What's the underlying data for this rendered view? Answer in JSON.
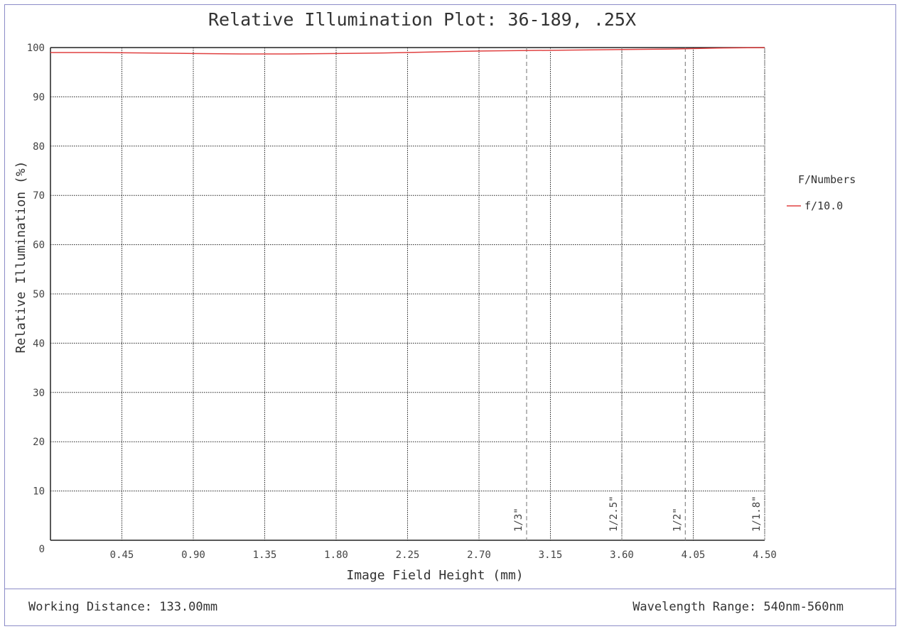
{
  "footer": {
    "working_distance": "Working Distance: 133.00mm",
    "wavelength_range": "Wavelength Range: 540nm-560nm"
  },
  "chart_data": {
    "type": "line",
    "title": "Relative Illumination Plot: 36-189, .25X",
    "xlabel": "Image Field Height (mm)",
    "ylabel": "Relative Illumination (%)",
    "xlim": [
      0,
      4.5
    ],
    "ylim": [
      0,
      100
    ],
    "x_ticks": [
      "0.45",
      "0.90",
      "1.35",
      "1.80",
      "2.25",
      "2.70",
      "3.15",
      "3.60",
      "4.05",
      "4.50"
    ],
    "y_ticks": [
      "0",
      "10",
      "20",
      "30",
      "40",
      "50",
      "60",
      "70",
      "80",
      "90",
      "100"
    ],
    "grid": true,
    "legend": {
      "title": "F/Numbers",
      "placement": "right"
    },
    "series": [
      {
        "name": "f/10.0",
        "color": "#e04040",
        "x": [
          0,
          0.3,
          0.6,
          0.9,
          1.2,
          1.5,
          1.8,
          2.1,
          2.4,
          2.7,
          3.0,
          3.3,
          3.6,
          3.9,
          4.2,
          4.5
        ],
        "y": [
          99.0,
          99.0,
          98.9,
          98.8,
          98.7,
          98.7,
          98.8,
          98.9,
          99.1,
          99.3,
          99.4,
          99.5,
          99.6,
          99.7,
          99.9,
          100.0
        ]
      }
    ],
    "sensor_markers": [
      {
        "label": "1/3\"",
        "x": 3.0
      },
      {
        "label": "1/2.5\"",
        "x": 3.6
      },
      {
        "label": "1/2\"",
        "x": 4.0
      },
      {
        "label": "1/1.8\"",
        "x": 4.5
      }
    ]
  }
}
